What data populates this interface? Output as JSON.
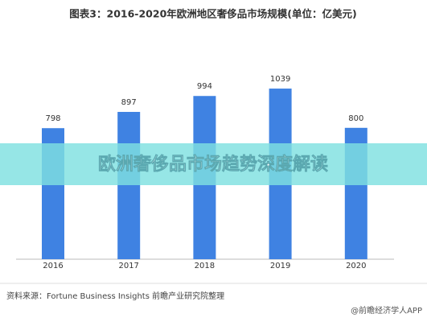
{
  "chart_data": {
    "type": "bar",
    "title": "图表3：2016-2020年欧洲地区奢侈品市场规模(单位：亿美元)",
    "categories": [
      "2016",
      "2017",
      "2018",
      "2019",
      "2020"
    ],
    "values": [
      798,
      897,
      994,
      1039,
      800
    ],
    "color": "#3f82e2"
  },
  "banner": "欧洲奢侈品市场趋势深度解读",
  "source": "资料来源：Fortune Business Insights 前瞻产业研究院整理",
  "watermark": "@前瞻经济学人APP"
}
